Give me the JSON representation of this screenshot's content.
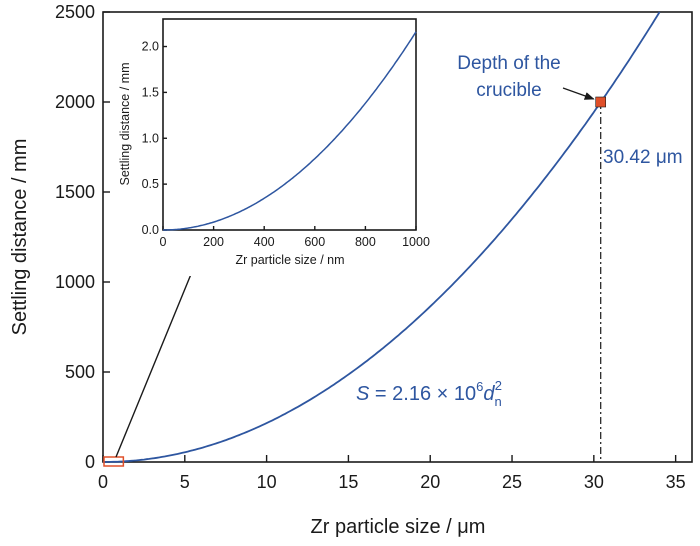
{
  "chart_data": [
    {
      "type": "line",
      "xlabel": "Zr particle size / μm",
      "ylabel": "Settling distance / mm",
      "xlim": [
        0,
        36
      ],
      "ylim": [
        0,
        2500
      ],
      "xticks": [
        0,
        5,
        10,
        15,
        20,
        25,
        30,
        35
      ],
      "yticks": [
        0,
        500,
        1000,
        1500,
        2000,
        2500
      ],
      "coefficient": 2.16,
      "series": [
        {
          "color": "#2e56a0",
          "x_range": [
            0,
            34.5
          ]
        }
      ],
      "equation": {
        "lhs": "S",
        "eq": " = 2.16 × 10",
        "exp": "6",
        "var": "d",
        "sub": "n",
        "sup": "2"
      },
      "marker": {
        "x": 30.42,
        "y": 2000,
        "color": "#e0502a"
      },
      "annotations": {
        "depth_line1": "Depth of the",
        "depth_line2": "crucible",
        "size_label": "30.42 μm"
      },
      "zoom_box": {
        "x": [
          0,
          1
        ],
        "y": [
          0,
          30
        ],
        "color": "#e0502a"
      },
      "grid": false
    },
    {
      "type": "line",
      "xlabel": "Zr particle size / nm",
      "ylabel": "Settling distance / mm",
      "xlim": [
        0,
        1000
      ],
      "ylim": [
        0,
        2.3
      ],
      "xticks": [
        0,
        200,
        400,
        600,
        800,
        1000
      ],
      "yticks": [
        0.0,
        0.5,
        1.0,
        1.5,
        2.0
      ],
      "ytick_labels": [
        "0.0",
        "0.5",
        "1.0",
        "1.5",
        "2.0"
      ],
      "coefficient": 2.16,
      "series": [
        {
          "color": "#2e56a0",
          "x_range": [
            0,
            1000
          ]
        }
      ],
      "grid": false
    }
  ]
}
